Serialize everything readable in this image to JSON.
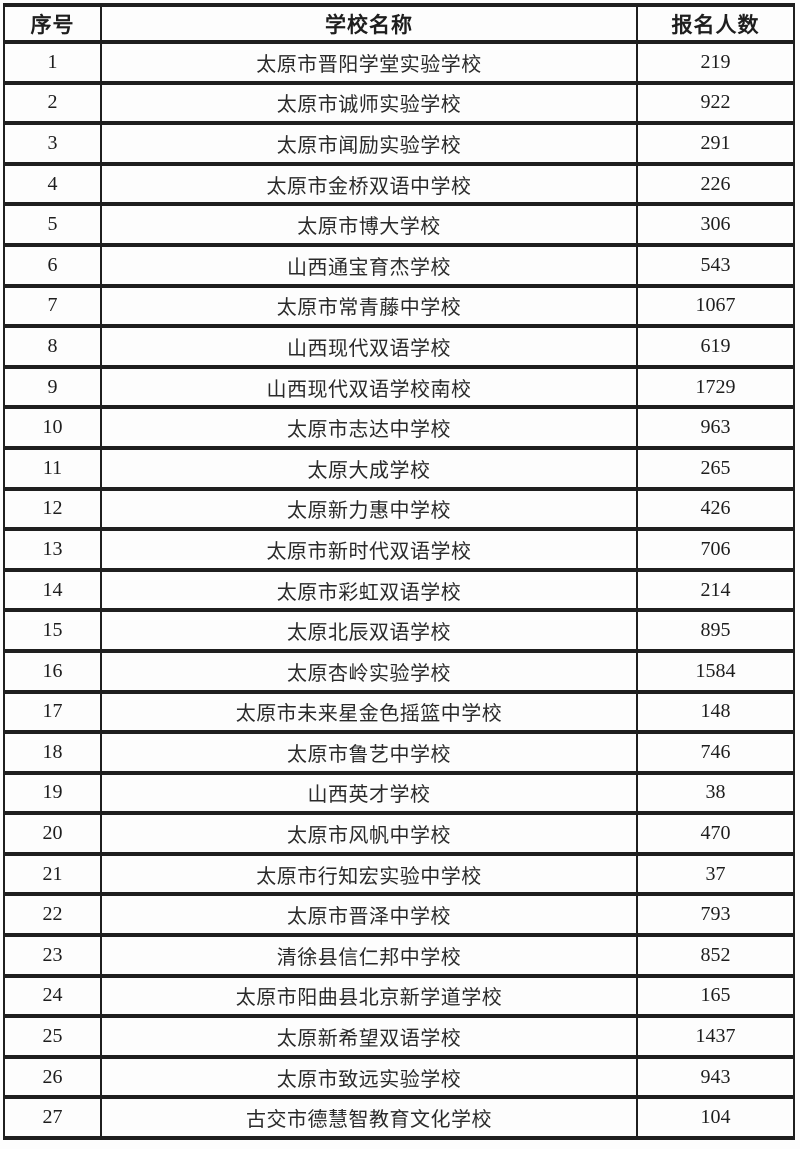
{
  "table": {
    "columns": [
      {
        "key": "index",
        "label": "序号"
      },
      {
        "key": "school",
        "label": "学校名称"
      },
      {
        "key": "count",
        "label": "报名人数"
      }
    ],
    "rows": [
      {
        "index": "1",
        "school": "太原市晋阳学堂实验学校",
        "count": "219"
      },
      {
        "index": "2",
        "school": "太原市诚师实验学校",
        "count": "922"
      },
      {
        "index": "3",
        "school": "太原市闻励实验学校",
        "count": "291"
      },
      {
        "index": "4",
        "school": "太原市金桥双语中学校",
        "count": "226"
      },
      {
        "index": "5",
        "school": "太原市博大学校",
        "count": "306"
      },
      {
        "index": "6",
        "school": "山西通宝育杰学校",
        "count": "543"
      },
      {
        "index": "7",
        "school": "太原市常青藤中学校",
        "count": "1067"
      },
      {
        "index": "8",
        "school": "山西现代双语学校",
        "count": "619"
      },
      {
        "index": "9",
        "school": "山西现代双语学校南校",
        "count": "1729"
      },
      {
        "index": "10",
        "school": "太原市志达中学校",
        "count": "963"
      },
      {
        "index": "11",
        "school": "太原大成学校",
        "count": "265"
      },
      {
        "index": "12",
        "school": "太原新力惠中学校",
        "count": "426"
      },
      {
        "index": "13",
        "school": "太原市新时代双语学校",
        "count": "706"
      },
      {
        "index": "14",
        "school": "太原市彩虹双语学校",
        "count": "214"
      },
      {
        "index": "15",
        "school": "太原北辰双语学校",
        "count": "895"
      },
      {
        "index": "16",
        "school": "太原杏岭实验学校",
        "count": "1584"
      },
      {
        "index": "17",
        "school": "太原市未来星金色摇篮中学校",
        "count": "148"
      },
      {
        "index": "18",
        "school": "太原市鲁艺中学校",
        "count": "746"
      },
      {
        "index": "19",
        "school": "山西英才学校",
        "count": "38"
      },
      {
        "index": "20",
        "school": "太原市风帆中学校",
        "count": "470"
      },
      {
        "index": "21",
        "school": "太原市行知宏实验中学校",
        "count": "37"
      },
      {
        "index": "22",
        "school": "太原市晋泽中学校",
        "count": "793"
      },
      {
        "index": "23",
        "school": "清徐县信仁邦中学校",
        "count": "852"
      },
      {
        "index": "24",
        "school": "太原市阳曲县北京新学道学校",
        "count": "165"
      },
      {
        "index": "25",
        "school": "太原新希望双语学校",
        "count": "1437"
      },
      {
        "index": "26",
        "school": "太原市致远实验学校",
        "count": "943"
      },
      {
        "index": "27",
        "school": "古交市德慧智教育文化学校",
        "count": "104"
      }
    ]
  },
  "colors": {
    "border": "#1f1f1f",
    "text": "#2a2a2a",
    "background": "#fdfdfd"
  }
}
